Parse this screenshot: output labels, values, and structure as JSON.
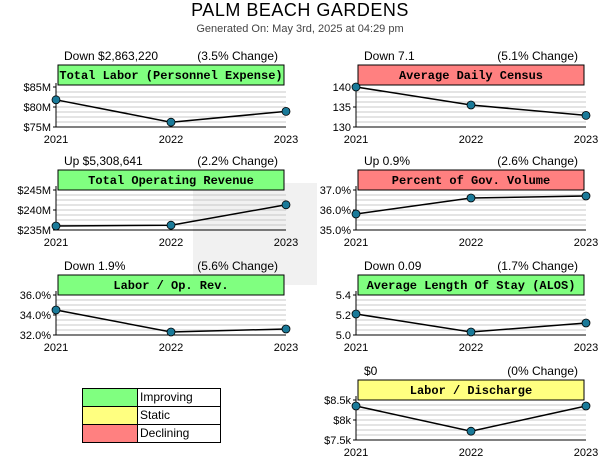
{
  "page": {
    "title": "PALM BEACH GARDENS",
    "subtitle": "Generated On: May 3rd, 2025 at 04:29 pm"
  },
  "legend": [
    {
      "label": "Improving",
      "color": "#80ff80"
    },
    {
      "label": "Static",
      "color": "#ffff80"
    },
    {
      "label": "Declining",
      "color": "#ff8080"
    }
  ],
  "chart_data": [
    {
      "type": "line",
      "title": "Total Labor (Personnel Expense)",
      "change_left": "Down $2,863,220",
      "change_right": "(3.5% Change)",
      "status_color": "#80ff80",
      "x": [
        "2021",
        "2022",
        "2023"
      ],
      "values": [
        81.8,
        76.2,
        78.9
      ],
      "yticks": [
        "$85M",
        "$80M",
        "$75M"
      ],
      "ytick_values": [
        85,
        80,
        75
      ],
      "ylim": [
        75,
        85
      ]
    },
    {
      "type": "line",
      "title": "Average Daily Census",
      "change_left": "Down 7.1",
      "change_right": "(5.1% Change)",
      "status_color": "#ff8080",
      "x": [
        "2021",
        "2022",
        "2023"
      ],
      "values": [
        140.0,
        135.5,
        132.9
      ],
      "yticks": [
        "140",
        "135",
        "130"
      ],
      "ytick_values": [
        140,
        135,
        130
      ],
      "ylim": [
        130,
        140
      ]
    },
    {
      "type": "line",
      "title": "Total Operating Revenue",
      "change_left": "Up $5,308,641",
      "change_right": "(2.2% Change)",
      "status_color": "#80ff80",
      "x": [
        "2021",
        "2022",
        "2023"
      ],
      "values": [
        236.0,
        236.2,
        241.3
      ],
      "yticks": [
        "$245M",
        "$240M",
        "$235M"
      ],
      "ytick_values": [
        245,
        240,
        235
      ],
      "ylim": [
        235,
        245
      ]
    },
    {
      "type": "line",
      "title": "Percent of Gov. Volume",
      "change_left": "Up 0.9%",
      "change_right": "(2.6% Change)",
      "status_color": "#ff8080",
      "x": [
        "2021",
        "2022",
        "2023"
      ],
      "values": [
        35.8,
        36.6,
        36.7
      ],
      "yticks": [
        "37.0%",
        "36.0%",
        "35.0%"
      ],
      "ytick_values": [
        37,
        36,
        35
      ],
      "ylim": [
        35,
        37
      ]
    },
    {
      "type": "line",
      "title": "Labor / Op. Rev.",
      "change_left": "Down 1.9%",
      "change_right": "(5.6% Change)",
      "status_color": "#80ff80",
      "x": [
        "2021",
        "2022",
        "2023"
      ],
      "values": [
        34.5,
        32.3,
        32.6
      ],
      "yticks": [
        "36.0%",
        "34.0%",
        "32.0%"
      ],
      "ytick_values": [
        36,
        34,
        32
      ],
      "ylim": [
        32,
        36
      ]
    },
    {
      "type": "line",
      "title": "Average Length Of Stay (ALOS)",
      "change_left": "Down 0.09",
      "change_right": "(1.7% Change)",
      "status_color": "#80ff80",
      "x": [
        "2021",
        "2022",
        "2023"
      ],
      "values": [
        5.21,
        5.03,
        5.12
      ],
      "yticks": [
        "5.4",
        "5.2",
        "5.0"
      ],
      "ytick_values": [
        5.4,
        5.2,
        5.0
      ],
      "ylim": [
        5.0,
        5.4
      ]
    },
    {
      "type": "line",
      "title": "Labor / Discharge",
      "change_left": "$0",
      "change_right": "(0% Change)",
      "status_color": "#ffff80",
      "x": [
        "2021",
        "2022",
        "2023"
      ],
      "values": [
        8.35,
        7.72,
        8.35
      ],
      "yticks": [
        "$8.5k",
        "$8k",
        "$7.5k"
      ],
      "ytick_values": [
        8.5,
        8.0,
        7.5
      ],
      "ylim": [
        7.5,
        8.5
      ]
    }
  ]
}
